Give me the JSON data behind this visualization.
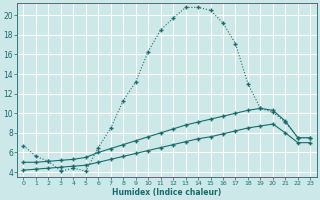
{
  "xlabel": "Humidex (Indice chaleur)",
  "ylabel": "",
  "bg_color": "#cde8e8",
  "grid_color": "#ffffff",
  "line_color": "#1a6b6b",
  "xlim": [
    -0.5,
    23.5
  ],
  "ylim": [
    3.5,
    21.2
  ],
  "yticks": [
    4,
    6,
    8,
    10,
    12,
    14,
    16,
    18,
    20
  ],
  "xticks": [
    0,
    1,
    2,
    3,
    4,
    5,
    6,
    7,
    8,
    9,
    10,
    11,
    12,
    13,
    14,
    15,
    16,
    17,
    18,
    19,
    20,
    21,
    22,
    23
  ],
  "curve1_x": [
    0,
    1,
    2,
    3,
    4,
    5,
    6,
    7,
    8,
    9,
    10,
    11,
    12,
    13,
    14,
    15,
    16,
    17,
    18,
    19,
    20,
    21,
    22,
    23
  ],
  "curve1_y": [
    6.7,
    5.6,
    5.1,
    4.1,
    4.4,
    4.1,
    6.5,
    8.5,
    11.3,
    13.2,
    16.3,
    18.5,
    19.7,
    20.8,
    20.8,
    20.5,
    19.2,
    17.1,
    13.0,
    10.5,
    10.1,
    9.1,
    7.5,
    7.5
  ],
  "curve2_x": [
    0,
    1,
    2,
    3,
    4,
    5,
    6,
    7,
    8,
    9,
    10,
    11,
    12,
    13,
    14,
    15,
    16,
    17,
    18,
    19,
    20,
    21,
    22,
    23
  ],
  "curve2_y": [
    5.0,
    5.0,
    5.1,
    5.2,
    5.3,
    5.5,
    6.0,
    6.4,
    6.8,
    7.2,
    7.6,
    8.0,
    8.4,
    8.8,
    9.1,
    9.4,
    9.7,
    10.0,
    10.3,
    10.5,
    10.3,
    9.2,
    7.5,
    7.5
  ],
  "curve3_x": [
    0,
    1,
    2,
    3,
    4,
    5,
    6,
    7,
    8,
    9,
    10,
    11,
    12,
    13,
    14,
    15,
    16,
    17,
    18,
    19,
    20,
    21,
    22,
    23
  ],
  "curve3_y": [
    4.2,
    4.3,
    4.4,
    4.5,
    4.6,
    4.7,
    5.0,
    5.3,
    5.6,
    5.9,
    6.2,
    6.5,
    6.8,
    7.1,
    7.4,
    7.6,
    7.9,
    8.2,
    8.5,
    8.7,
    8.9,
    8.0,
    7.0,
    7.0
  ]
}
